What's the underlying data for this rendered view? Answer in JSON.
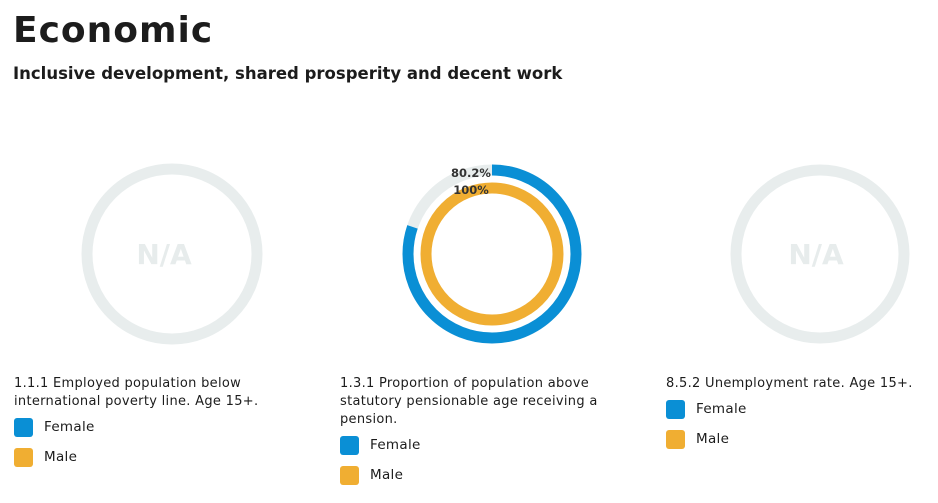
{
  "header": {
    "title": "Economic",
    "subtitle": "Inclusive development, shared prosperity and decent work"
  },
  "legend": {
    "female": "Female",
    "male": "Male"
  },
  "colors": {
    "female": "#0a8fd5",
    "male": "#f0ae32",
    "track": "#e8eded",
    "na_text": "#e7ecec"
  },
  "chart_data": [
    {
      "type": "donut",
      "indicator": "1.1.1 Employed population below international poverty line. Age 15+.",
      "status": "N/A",
      "series": [
        {
          "name": "Female",
          "value": null
        },
        {
          "name": "Male",
          "value": null
        }
      ]
    },
    {
      "type": "donut",
      "indicator": "1.3.1 Proportion of population above statutory pensionable age receiving a pension.",
      "unit": "%",
      "range": [
        0,
        100
      ],
      "series": [
        {
          "name": "Female",
          "value": 80.2,
          "label": "80.2%"
        },
        {
          "name": "Male",
          "value": 100,
          "label": "100%"
        }
      ]
    },
    {
      "type": "donut",
      "indicator": "8.5.2 Unemployment rate. Age 15+.",
      "status": "N/A",
      "series": [
        {
          "name": "Female",
          "value": null
        },
        {
          "name": "Male",
          "value": null
        }
      ]
    }
  ]
}
